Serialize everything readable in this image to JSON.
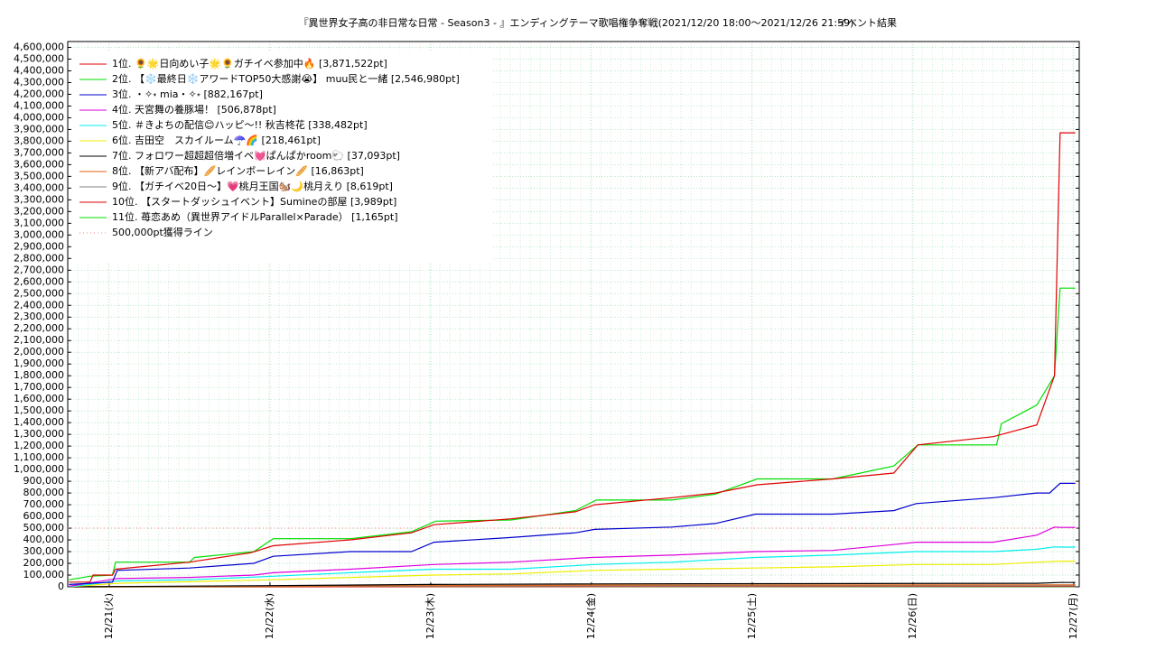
{
  "chart_data": {
    "type": "line",
    "title": "『異世界女子高の非日常な日常 - Season3 - 』エンディングテーマ歌唱権争奪戦(2021/12/20 18:00～2021/12/26 21:59)",
    "subtitle": "イベント結果",
    "xlim": [
      -0.258,
      6.034
    ],
    "xticks": [
      {
        "value": 0,
        "label": "12/21(火)"
      },
      {
        "value": 1,
        "label": "12/22(水)"
      },
      {
        "value": 2,
        "label": "12/23(木)"
      },
      {
        "value": 3,
        "label": "12/24(金)"
      },
      {
        "value": 4,
        "label": "12/25(土)"
      },
      {
        "value": 5,
        "label": "12/26(日)"
      },
      {
        "value": 6,
        "label": "12/27(月)"
      }
    ],
    "ylim": [
      0,
      4650000
    ],
    "yticks": [
      0,
      {
        "value": 100000,
        "label": "100,000"
      },
      {
        "value": 200000,
        "label": "200,000"
      },
      {
        "value": 300000,
        "label": "300,000"
      },
      {
        "value": 400000,
        "label": "400,000"
      },
      {
        "value": 500000,
        "label": "500,000"
      },
      {
        "value": 600000,
        "label": "600,000"
      },
      {
        "value": 700000,
        "label": "700,000"
      },
      {
        "value": 800000,
        "label": "800,000"
      },
      {
        "value": 900000,
        "label": "900,000"
      },
      {
        "value": 1000000,
        "label": "1,000,000"
      },
      {
        "value": 1100000,
        "label": "1,100,000"
      },
      {
        "value": 1200000,
        "label": "1,200,000"
      },
      {
        "value": 1300000,
        "label": "1,300,000"
      },
      {
        "value": 1400000,
        "label": "1,400,000"
      },
      {
        "value": 1500000,
        "label": "1,500,000"
      },
      {
        "value": 1600000,
        "label": "1,600,000"
      },
      {
        "value": 1700000,
        "label": "1,700,000"
      },
      {
        "value": 1800000,
        "label": "1,800,000"
      },
      {
        "value": 1900000,
        "label": "1,900,000"
      },
      {
        "value": 2000000,
        "label": "2,000,000"
      },
      {
        "value": 2100000,
        "label": "2,100,000"
      },
      {
        "value": 2200000,
        "label": "2,200,000"
      },
      {
        "value": 2300000,
        "label": "2,300,000"
      },
      {
        "value": 2400000,
        "label": "2,400,000"
      },
      {
        "value": 2500000,
        "label": "2,500,000"
      },
      {
        "value": 2600000,
        "label": "2,600,000"
      },
      {
        "value": 2700000,
        "label": "2,700,000"
      },
      {
        "value": 2800000,
        "label": "2,800,000"
      },
      {
        "value": 2900000,
        "label": "2,900,000"
      },
      {
        "value": 3000000,
        "label": "3,000,000"
      },
      {
        "value": 3100000,
        "label": "3,100,000"
      },
      {
        "value": 3200000,
        "label": "3,200,000"
      },
      {
        "value": 3300000,
        "label": "3,300,000"
      },
      {
        "value": 3400000,
        "label": "3,400,000"
      },
      {
        "value": 3500000,
        "label": "3,500,000"
      },
      {
        "value": 3600000,
        "label": "3,600,000"
      },
      {
        "value": 3700000,
        "label": "3,700,000"
      },
      {
        "value": 3800000,
        "label": "3,800,000"
      },
      {
        "value": 3900000,
        "label": "3,900,000"
      },
      {
        "value": 4000000,
        "label": "4,000,000"
      },
      {
        "value": 4100000,
        "label": "4,100,000"
      },
      {
        "value": 4200000,
        "label": "4,200,000"
      },
      {
        "value": 4300000,
        "label": "4,300,000"
      },
      {
        "value": 4400000,
        "label": "4,400,000"
      },
      {
        "value": 4500000,
        "label": "4,500,000"
      },
      {
        "value": 4600000,
        "label": "4,600,000"
      }
    ],
    "grid": true,
    "legend": "upper-left",
    "series": [
      {
        "name": "1位. 🌻🌟日向めい子🌟🌻ガチイベ参加中🔥 [3,871,522pt]",
        "color": "#e00000",
        "x": [
          -0.25,
          -0.12,
          -0.1,
          0.02,
          0.04,
          0.5,
          0.88,
          1.02,
          1.5,
          1.88,
          2.02,
          2.5,
          2.9,
          3.02,
          3.5,
          3.77,
          4.03,
          4.5,
          4.88,
          5.03,
          5.5,
          5.77,
          5.88,
          5.915,
          6.01
        ],
        "values": [
          40000,
          40000,
          100000,
          100000,
          150000,
          210000,
          290000,
          350000,
          400000,
          460000,
          530000,
          580000,
          640000,
          700000,
          760000,
          800000,
          870000,
          920000,
          970000,
          1210000,
          1280000,
          1380000,
          1800000,
          3871522,
          3871522
        ]
      },
      {
        "name": "2位. 【❄️最終日❄️アワードTOP50大感謝😭】 muu民と一緒 [2,546,980pt]",
        "color": "#00dd00",
        "x": [
          -0.25,
          -0.12,
          0.02,
          0.04,
          0.5,
          0.53,
          0.9,
          1.02,
          1.5,
          1.88,
          2.03,
          2.5,
          2.9,
          3.03,
          3.5,
          3.77,
          4.03,
          4.5,
          4.88,
          5.03,
          5.52,
          5.55,
          5.77,
          5.88,
          5.915,
          6.01
        ],
        "values": [
          60000,
          90000,
          100000,
          210000,
          210000,
          250000,
          300000,
          410000,
          410000,
          470000,
          560000,
          570000,
          650000,
          740000,
          740000,
          790000,
          920000,
          920000,
          1030000,
          1210000,
          1210000,
          1390000,
          1550000,
          1800000,
          2546980,
          2546980
        ]
      },
      {
        "name": "3位. ・✧˖ mia・✧˖ [882,167pt]",
        "color": "#0000cc",
        "x": [
          -0.25,
          0.02,
          0.05,
          0.5,
          0.9,
          1.02,
          1.5,
          1.88,
          2.02,
          2.5,
          2.9,
          3.02,
          3.5,
          3.77,
          4.02,
          4.5,
          4.88,
          5.02,
          5.5,
          5.77,
          5.85,
          5.915,
          6.01
        ],
        "values": [
          20000,
          40000,
          140000,
          160000,
          200000,
          260000,
          300000,
          300000,
          380000,
          420000,
          460000,
          490000,
          510000,
          540000,
          620000,
          620000,
          650000,
          710000,
          760000,
          800000,
          800000,
          882167,
          882167
        ]
      },
      {
        "name": "4位. 天宮舞の養豚場！ [506,878pt]",
        "color": "#dd00dd",
        "x": [
          -0.25,
          0.05,
          0.5,
          0.9,
          1.02,
          1.5,
          2.02,
          2.5,
          3.0,
          3.5,
          4.02,
          4.5,
          4.88,
          5.02,
          5.5,
          5.77,
          5.88,
          5.915,
          6.01
        ],
        "values": [
          5000,
          70000,
          80000,
          100000,
          120000,
          150000,
          190000,
          210000,
          250000,
          270000,
          300000,
          310000,
          360000,
          380000,
          380000,
          440000,
          510000,
          506878,
          506878
        ]
      },
      {
        "name": "5位. ＃きよちの配信😊ハッピ〜!! 秋吉柊花 [338,482pt]",
        "color": "#00eeee",
        "x": [
          -0.25,
          0.05,
          0.5,
          1.02,
          1.5,
          2.02,
          2.5,
          3.02,
          3.5,
          4.02,
          4.5,
          5.02,
          5.5,
          5.77,
          5.88,
          5.915,
          6.01
        ],
        "values": [
          0,
          50000,
          60000,
          90000,
          120000,
          150000,
          150000,
          190000,
          210000,
          250000,
          270000,
          300000,
          300000,
          320000,
          340000,
          338482,
          338482
        ]
      },
      {
        "name": "6位. 吉田空　スカイルーム☂️🌈 [218,461pt]",
        "color": "#eeee00",
        "x": [
          -0.25,
          0.05,
          1.02,
          1.5,
          2.02,
          2.5,
          3.02,
          3.5,
          4.02,
          4.5,
          5.02,
          5.5,
          5.77,
          5.915,
          6.01
        ],
        "values": [
          0,
          30000,
          60000,
          80000,
          100000,
          110000,
          140000,
          150000,
          160000,
          170000,
          190000,
          190000,
          210000,
          218461,
          218461
        ]
      },
      {
        "name": "7位. フォロワー超超超倍増イベ💓ぱんぱかroom🐑 [37,093pt]",
        "color": "#000000",
        "x": [
          -0.25,
          1.0,
          2.0,
          3.0,
          5.77,
          5.915,
          6.01
        ],
        "values": [
          0,
          10000,
          20000,
          25000,
          30000,
          37093,
          37093
        ]
      },
      {
        "name": "8位. 【新アバ配布】🥖レインボーレイン🥖 [16,863pt]",
        "color": "#e06010",
        "x": [
          -0.25,
          2.0,
          3.0,
          5.915,
          6.01
        ],
        "values": [
          0,
          10000,
          15000,
          16863,
          16863
        ]
      },
      {
        "name": "9位. 【ガチイベ20日〜】💗桃月王国🐿️🌙桃月えり [8,619pt]",
        "color": "#808080",
        "x": [
          -0.25,
          1.0,
          5.915,
          6.01
        ],
        "values": [
          0,
          5000,
          8619,
          8619
        ]
      },
      {
        "name": "10位. 【スタートダッシュイベント】Sumineの部屋 [3,989pt]",
        "color": "#e00000",
        "x": [
          -0.25,
          5.915,
          6.01
        ],
        "values": [
          0,
          3989,
          3989
        ]
      },
      {
        "name": "11位. 苺恋あめ（異世界アイドルParallel×Parade） [1,165pt]",
        "color": "#00dd00",
        "x": [
          -0.25,
          5.915,
          6.01
        ],
        "values": [
          0,
          1165,
          1165
        ]
      }
    ],
    "hline": {
      "name": "500,000pt獲得ライン",
      "value": 500000,
      "color": "#ff8080"
    }
  }
}
